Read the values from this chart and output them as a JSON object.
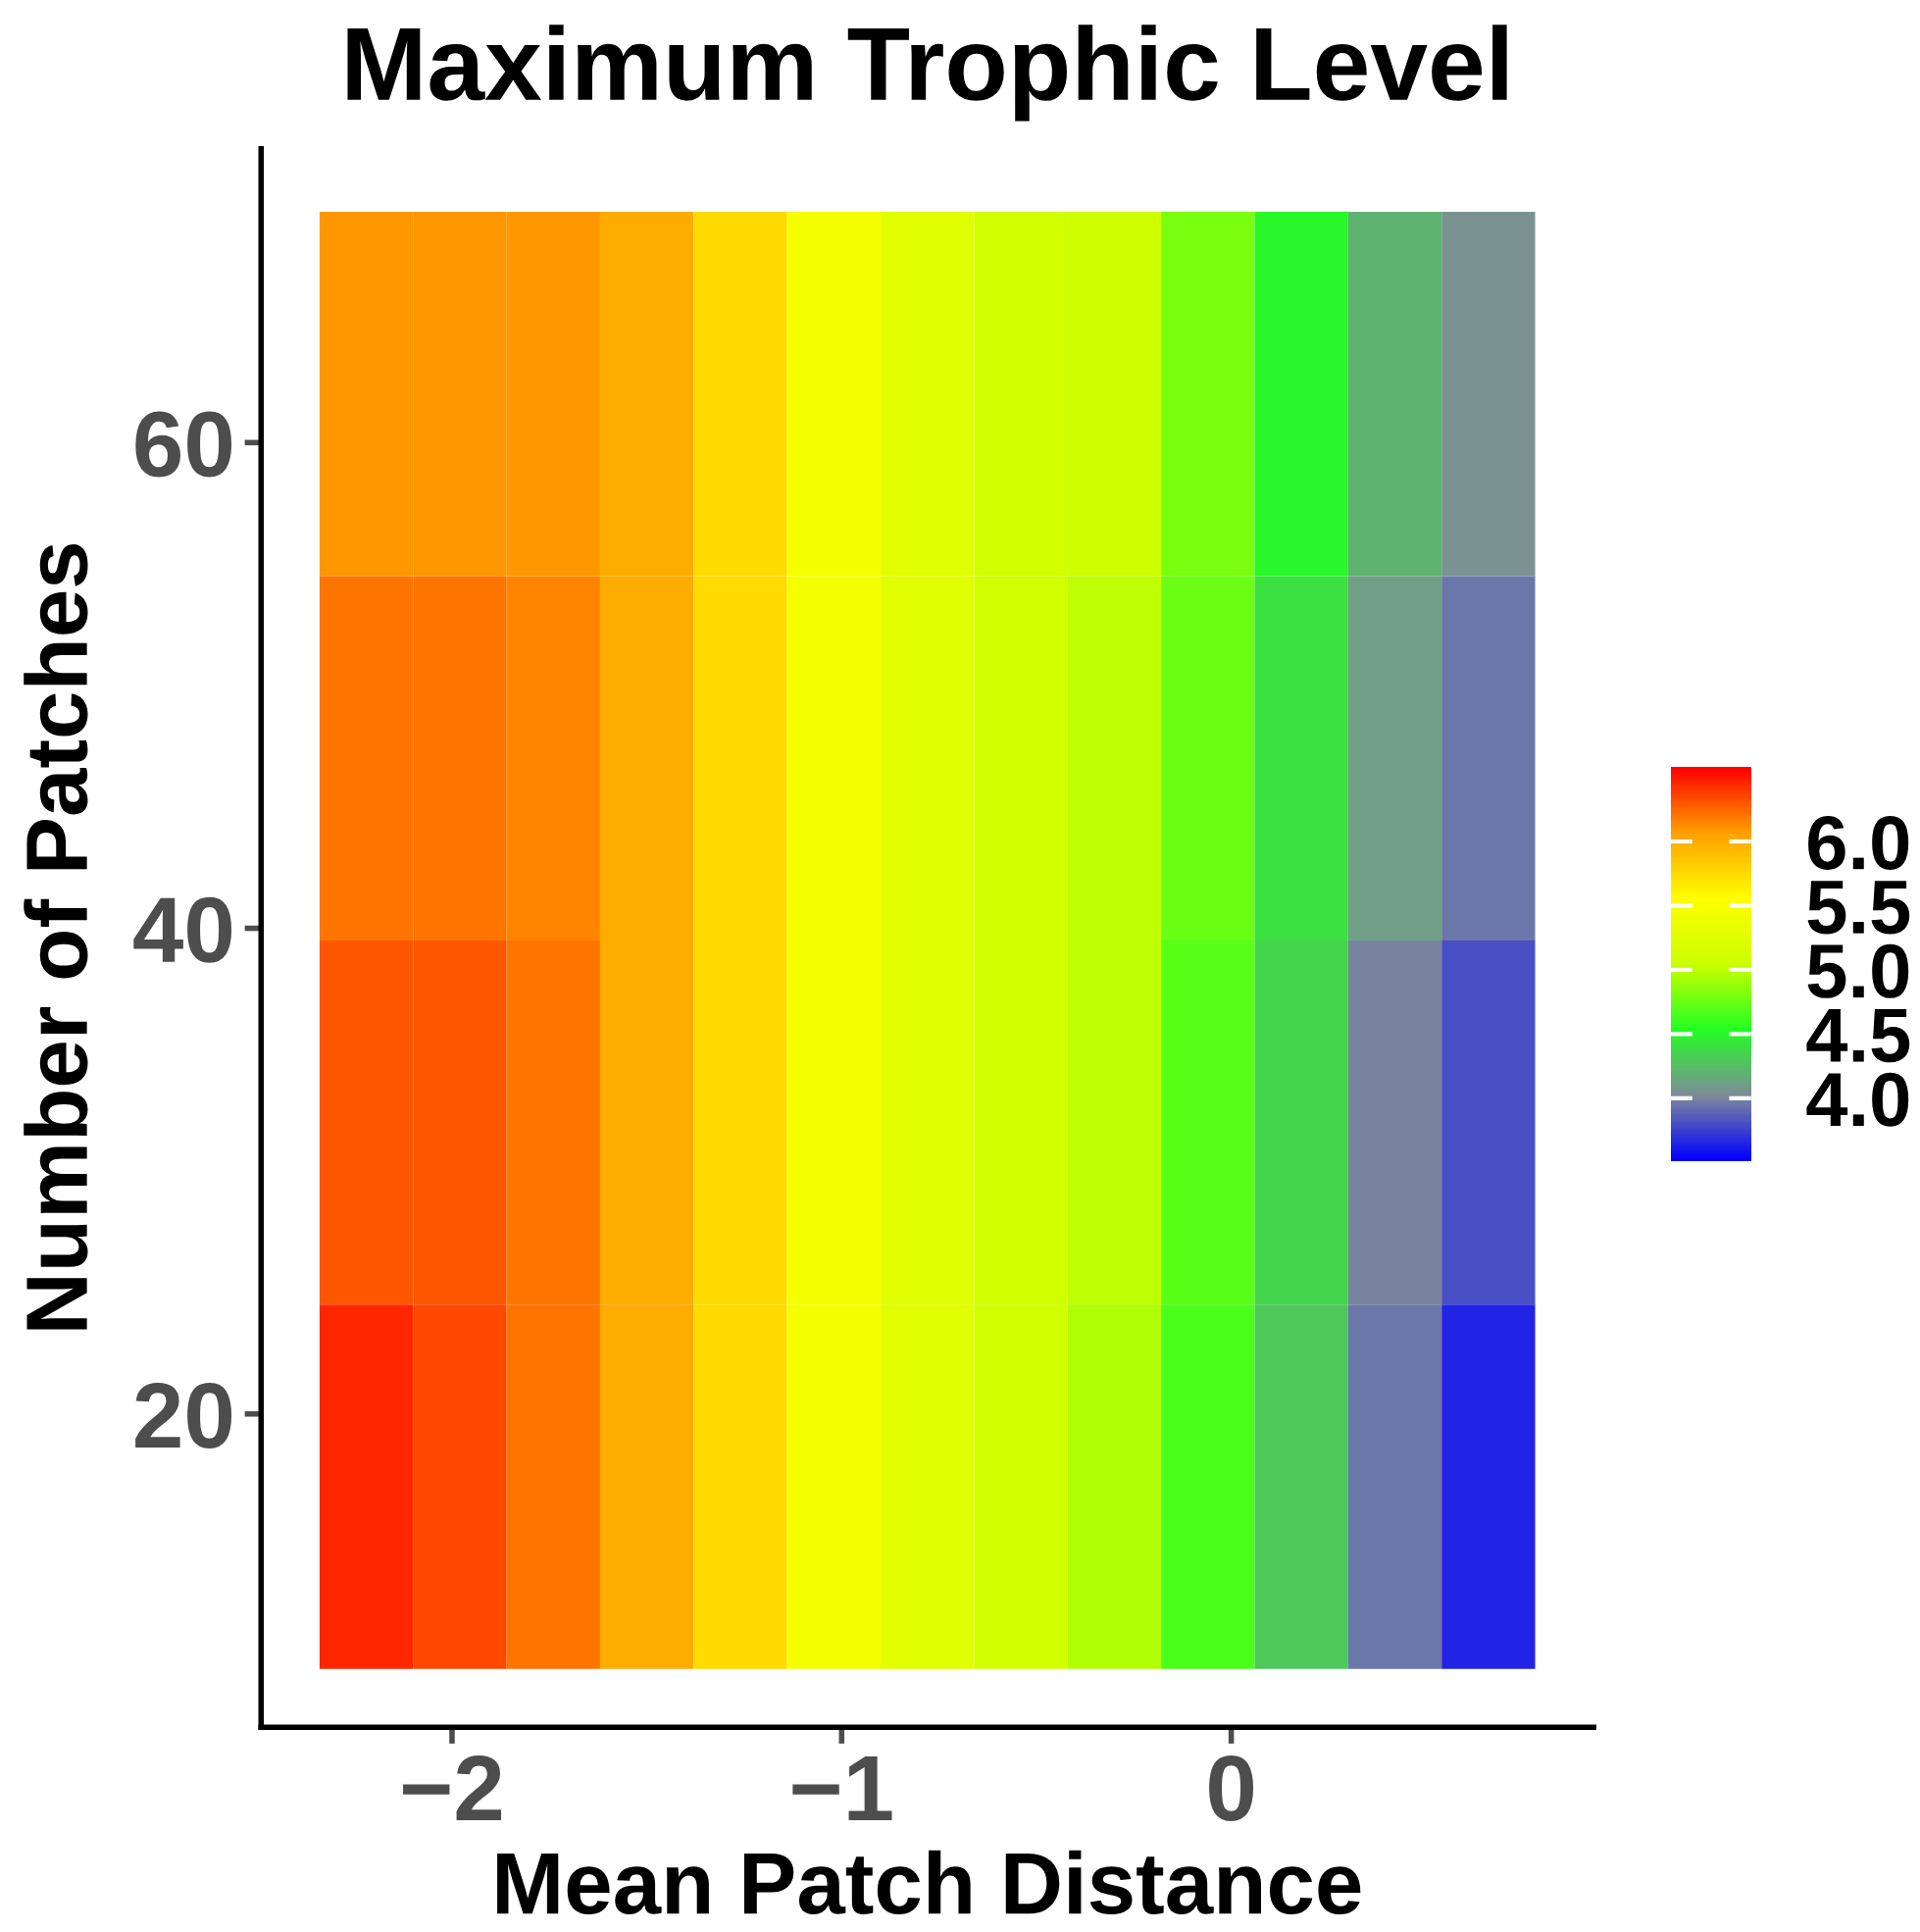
{
  "chart_data": {
    "type": "heatmap",
    "title": "Maximum Trophic Level",
    "xlabel": "Mean Patch Distance",
    "ylabel": "Number of Patches",
    "x": [
      -2.22,
      -1.98,
      -1.74,
      -1.5,
      -1.26,
      -1.02,
      -0.78,
      -0.54,
      -0.3,
      -0.06,
      0.18,
      0.42,
      0.66
    ],
    "y": [
      62,
      47,
      32,
      17
    ],
    "cells": [
      [
        6.1,
        6.1,
        6.1,
        6.0,
        5.75,
        5.45,
        5.25,
        5.1,
        5.05,
        4.8,
        4.5,
        4.2,
        4.05
      ],
      [
        6.2,
        6.2,
        6.15,
        6.0,
        5.75,
        5.45,
        5.25,
        5.1,
        5.0,
        4.75,
        4.4,
        4.1,
        3.95
      ],
      [
        6.3,
        6.3,
        6.2,
        6.0,
        5.75,
        5.45,
        5.25,
        5.1,
        5.0,
        4.7,
        4.35,
        4.0,
        3.8
      ],
      [
        6.45,
        6.35,
        6.2,
        6.0,
        5.75,
        5.45,
        5.25,
        5.1,
        4.95,
        4.65,
        4.3,
        3.95,
        3.65
      ]
    ],
    "colors": [
      "#0000ff",
      "#7f8c99",
      "#22ff22",
      "#ccff00",
      "#ffff00",
      "#ffa000",
      "#ff0000"
    ],
    "clim": [
      3.51,
      6.58
    ],
    "cticks": [
      {
        "value": 4,
        "label": "4.0"
      },
      4.5,
      {
        "value": 5,
        "label": "5.0"
      },
      5.5,
      {
        "value": 6,
        "label": "6.0"
      }
    ],
    "xlim": [
      -2.49,
      0.93
    ],
    "xticks": [
      {
        "value": -2,
        "label": "−2"
      },
      {
        "value": -1,
        "label": "−1"
      },
      0
    ],
    "ylim": [
      7.1,
      72.1
    ],
    "yticks": [
      20,
      40,
      60
    ],
    "grid": false
  }
}
